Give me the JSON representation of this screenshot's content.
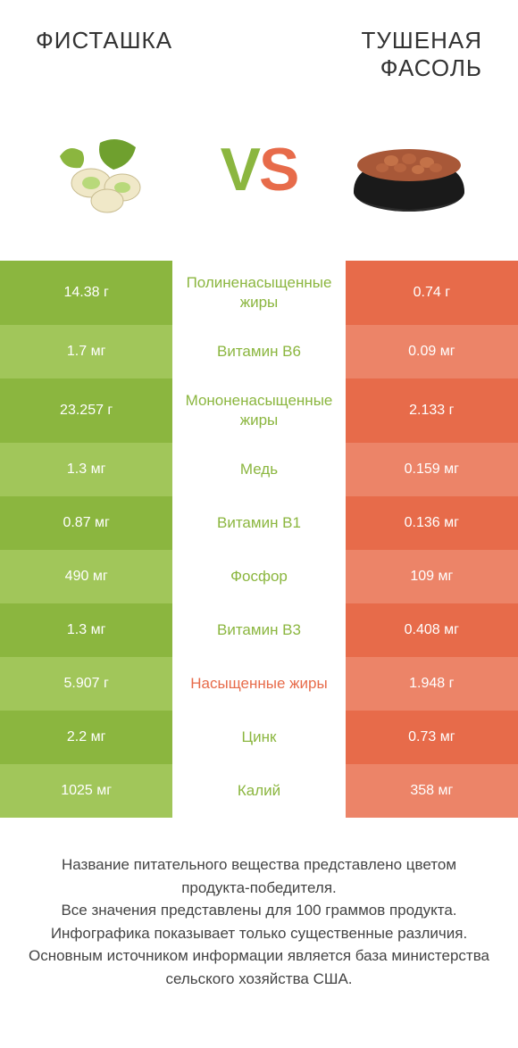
{
  "header": {
    "left_title": "ФИСТАШКА",
    "right_title": "ТУШЕНАЯ ФАСОЛЬ",
    "vs_v": "V",
    "vs_s": "S"
  },
  "colors": {
    "left_main": "#8bb63f",
    "left_alt": "#a1c65a",
    "right_main": "#e76b4a",
    "right_alt": "#ec8468",
    "background": "#ffffff"
  },
  "rows": [
    {
      "left": "14.38 г",
      "label": "Полиненасыщенные жиры",
      "right": "0.74 г",
      "winner": "left",
      "alt": false
    },
    {
      "left": "1.7 мг",
      "label": "Витамин B6",
      "right": "0.09 мг",
      "winner": "left",
      "alt": true
    },
    {
      "left": "23.257 г",
      "label": "Мононенасыщенные жиры",
      "right": "2.133 г",
      "winner": "left",
      "alt": false
    },
    {
      "left": "1.3 мг",
      "label": "Медь",
      "right": "0.159 мг",
      "winner": "left",
      "alt": true
    },
    {
      "left": "0.87 мг",
      "label": "Витамин B1",
      "right": "0.136 мг",
      "winner": "left",
      "alt": false
    },
    {
      "left": "490 мг",
      "label": "Фосфор",
      "right": "109 мг",
      "winner": "left",
      "alt": true
    },
    {
      "left": "1.3 мг",
      "label": "Витамин B3",
      "right": "0.408 мг",
      "winner": "left",
      "alt": false
    },
    {
      "left": "5.907 г",
      "label": "Насыщенные жиры",
      "right": "1.948 г",
      "winner": "right",
      "alt": true
    },
    {
      "left": "2.2 мг",
      "label": "Цинк",
      "right": "0.73 мг",
      "winner": "left",
      "alt": false
    },
    {
      "left": "1025 мг",
      "label": "Калий",
      "right": "358 мг",
      "winner": "left",
      "alt": true
    }
  ],
  "footer": {
    "line1": "Название питательного вещества представлено цветом продукта-победителя.",
    "line2": "Все значения представлены для 100 граммов продукта.",
    "line3": "Инфографика показывает только существенные различия.",
    "line4": "Основным источником информации является база министерства сельского хозяйства США."
  }
}
